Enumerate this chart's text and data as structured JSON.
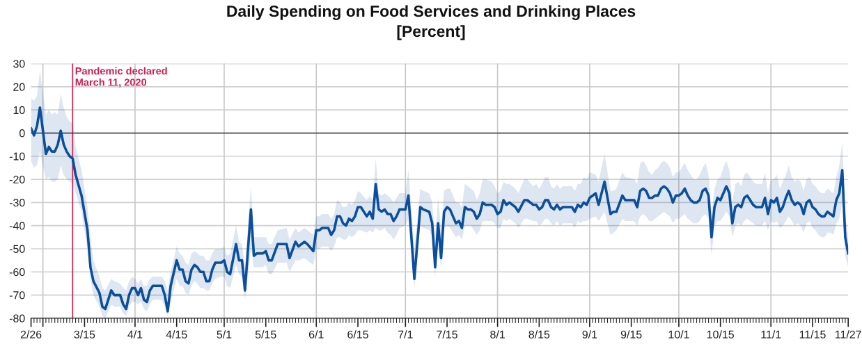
{
  "chart_data": {
    "type": "line",
    "title": "Daily Spending on Food Services and Drinking Places\n[Percent]",
    "x": [
      "2020-02-26",
      "2020-02-27",
      "2020-02-28",
      "2020-02-29",
      "2020-03-02",
      "2020-03-03",
      "2020-03-04",
      "2020-03-05",
      "2020-03-06",
      "2020-03-07",
      "2020-03-08",
      "2020-03-09",
      "2020-03-10",
      "2020-03-11",
      "2020-03-12",
      "2020-03-14",
      "2020-03-16",
      "2020-03-17",
      "2020-03-18",
      "2020-03-20",
      "2020-03-21",
      "2020-03-22",
      "2020-03-24",
      "2020-03-25",
      "2020-03-27",
      "2020-03-28",
      "2020-03-29",
      "2020-03-30",
      "2020-03-31",
      "2020-04-01",
      "2020-04-02",
      "2020-04-03",
      "2020-04-04",
      "2020-04-05",
      "2020-04-06",
      "2020-04-07",
      "2020-04-10",
      "2020-04-11",
      "2020-04-12",
      "2020-04-13",
      "2020-04-15",
      "2020-04-16",
      "2020-04-17",
      "2020-04-18",
      "2020-04-19",
      "2020-04-20",
      "2020-04-21",
      "2020-04-22",
      "2020-04-23",
      "2020-04-24",
      "2020-04-25",
      "2020-04-26",
      "2020-04-27",
      "2020-04-28",
      "2020-04-30",
      "2020-05-01",
      "2020-05-02",
      "2020-05-03",
      "2020-05-05",
      "2020-05-06",
      "2020-05-07",
      "2020-05-08",
      "2020-05-10",
      "2020-05-11",
      "2020-05-12",
      "2020-05-14",
      "2020-05-15",
      "2020-05-16",
      "2020-05-17",
      "2020-05-19",
      "2020-05-22",
      "2020-05-23",
      "2020-05-25",
      "2020-05-26",
      "2020-05-28",
      "2020-05-29",
      "2020-05-31",
      "2020-06-01",
      "2020-06-02",
      "2020-06-03",
      "2020-06-05",
      "2020-06-06",
      "2020-06-07",
      "2020-06-08",
      "2020-06-09",
      "2020-06-10",
      "2020-06-11",
      "2020-06-12",
      "2020-06-13",
      "2020-06-14",
      "2020-06-15",
      "2020-06-16",
      "2020-06-18",
      "2020-06-19",
      "2020-06-20",
      "2020-06-21",
      "2020-06-22",
      "2020-06-23",
      "2020-06-24",
      "2020-06-25",
      "2020-06-26",
      "2020-06-27",
      "2020-06-28",
      "2020-06-29",
      "2020-07-01",
      "2020-07-02",
      "2020-07-04",
      "2020-07-06",
      "2020-07-07",
      "2020-07-09",
      "2020-07-10",
      "2020-07-11",
      "2020-07-12",
      "2020-07-13",
      "2020-07-14",
      "2020-07-15",
      "2020-07-16",
      "2020-07-18",
      "2020-07-19",
      "2020-07-20",
      "2020-07-21",
      "2020-07-22",
      "2020-07-23",
      "2020-07-24",
      "2020-07-25",
      "2020-07-26",
      "2020-07-27",
      "2020-07-28",
      "2020-07-30",
      "2020-07-31",
      "2020-08-01",
      "2020-08-02",
      "2020-08-03",
      "2020-08-04",
      "2020-08-05",
      "2020-08-07",
      "2020-08-08",
      "2020-08-10",
      "2020-08-11",
      "2020-08-13",
      "2020-08-14",
      "2020-08-15",
      "2020-08-16",
      "2020-08-17",
      "2020-08-18",
      "2020-08-19",
      "2020-08-20",
      "2020-08-21",
      "2020-08-22",
      "2020-08-23",
      "2020-08-26",
      "2020-08-27",
      "2020-08-28",
      "2020-08-29",
      "2020-08-30",
      "2020-08-31",
      "2020-09-01",
      "2020-09-03",
      "2020-09-04",
      "2020-09-06",
      "2020-09-08",
      "2020-09-09",
      "2020-09-10",
      "2020-09-12",
      "2020-09-13",
      "2020-09-16",
      "2020-09-17",
      "2020-09-18",
      "2020-09-19",
      "2020-09-20",
      "2020-09-21",
      "2020-09-22",
      "2020-09-23",
      "2020-09-24",
      "2020-09-25",
      "2020-09-26",
      "2020-09-27",
      "2020-09-28",
      "2020-09-29",
      "2020-09-30",
      "2020-10-01",
      "2020-10-02",
      "2020-10-03",
      "2020-10-04",
      "2020-10-05",
      "2020-10-06",
      "2020-10-07",
      "2020-10-08",
      "2020-10-09",
      "2020-10-10",
      "2020-10-11",
      "2020-10-12",
      "2020-10-13",
      "2020-10-14",
      "2020-10-15",
      "2020-10-16",
      "2020-10-17",
      "2020-10-18",
      "2020-10-19",
      "2020-10-20",
      "2020-10-21",
      "2020-10-22",
      "2020-10-23",
      "2020-10-24",
      "2020-10-25",
      "2020-10-26",
      "2020-10-27",
      "2020-10-29",
      "2020-10-30",
      "2020-10-31",
      "2020-11-01",
      "2020-11-02",
      "2020-11-03",
      "2020-11-04",
      "2020-11-05",
      "2020-11-06",
      "2020-11-07",
      "2020-11-08",
      "2020-11-09",
      "2020-11-10",
      "2020-11-11",
      "2020-11-12",
      "2020-11-13",
      "2020-11-14",
      "2020-11-15",
      "2020-11-16",
      "2020-11-17",
      "2020-11-18",
      "2020-11-19",
      "2020-11-20",
      "2020-11-21",
      "2020-11-22",
      "2020-11-23",
      "2020-11-24",
      "2020-11-25",
      "2020-11-26",
      "2020-11-27"
    ],
    "series": [
      {
        "color": "#0b4f9c",
        "values": [
          2,
          -1,
          3,
          11,
          -9,
          -6,
          -8,
          -8,
          -5,
          1,
          -5,
          -8,
          -10,
          -11,
          -18,
          -27,
          -42,
          -58,
          -64,
          -69,
          -75,
          -76,
          -68,
          -70,
          -70,
          -74,
          -76,
          -70,
          -67,
          -67,
          -70,
          -67,
          -72,
          -73,
          -68,
          -66,
          -66,
          -70,
          -77,
          -66,
          -55,
          -59,
          -59,
          -64,
          -65,
          -59,
          -57,
          -58,
          -60,
          -60,
          -64,
          -64,
          -59,
          -56,
          -56,
          -55,
          -60,
          -61,
          -48,
          -55,
          -55,
          -68,
          -33,
          -53,
          -52,
          -52,
          -51,
          -55,
          -55,
          -48,
          -48,
          -54,
          -47,
          -49,
          -47,
          -48,
          -51,
          -42,
          -42,
          -41,
          -41,
          -44,
          -42,
          -36,
          -36,
          -39,
          -40,
          -37,
          -38,
          -36,
          -32,
          -32,
          -36,
          -34,
          -37,
          -22,
          -33,
          -34,
          -33,
          -35,
          -35,
          -38,
          -36,
          -33,
          -33,
          -27,
          -63,
          -32,
          -33,
          -34,
          -39,
          -58,
          -39,
          -54,
          -34,
          -32,
          -33,
          -39,
          -38,
          -41,
          -32,
          -33,
          -33,
          -34,
          -37,
          -35,
          -30,
          -31,
          -31,
          -32,
          -35,
          -34,
          -29,
          -31,
          -30,
          -32,
          -34,
          -29,
          -29,
          -31,
          -31,
          -33,
          -32,
          -29,
          -29,
          -32,
          -33,
          -31,
          -33,
          -32,
          -32,
          -34,
          -31,
          -32,
          -30,
          -31,
          -28,
          -26,
          -31,
          -21,
          -35,
          -34,
          -34,
          -27,
          -29,
          -29,
          -32,
          -25,
          -24,
          -25,
          -28,
          -28,
          -27,
          -27,
          -24,
          -23,
          -24,
          -26,
          -30,
          -27,
          -27,
          -26,
          -24,
          -27,
          -29,
          -30,
          -30,
          -29,
          -25,
          -24,
          -27,
          -45,
          -32,
          -28,
          -29,
          -26,
          -23,
          -26,
          -39,
          -32,
          -31,
          -32,
          -28,
          -27,
          -29,
          -31,
          -32,
          -32,
          -28,
          -35,
          -29,
          -30,
          -28,
          -34,
          -32,
          -28,
          -25,
          -29,
          -31,
          -30,
          -31,
          -35,
          -30,
          -29,
          -32,
          -33,
          -35,
          -36,
          -36,
          -34,
          -35,
          -36,
          -29,
          -26,
          -16,
          -45,
          -52
        ],
        "lower": [
          -12,
          -15,
          -14,
          -8,
          -20,
          -19,
          -21,
          -21,
          -20,
          -14,
          -18,
          -20,
          -21,
          -22,
          -26,
          -34,
          -50,
          -63,
          -70,
          -75,
          -79,
          -80,
          -74,
          -75,
          -75,
          -78,
          -79,
          -75,
          -73,
          -73,
          -74,
          -73,
          -76,
          -77,
          -74,
          -72,
          -72,
          -75,
          -79,
          -73,
          -63,
          -66,
          -66,
          -69,
          -70,
          -66,
          -64,
          -65,
          -67,
          -67,
          -68,
          -68,
          -65,
          -63,
          -62,
          -62,
          -66,
          -67,
          -57,
          -61,
          -62,
          -72,
          -50,
          -58,
          -58,
          -58,
          -57,
          -61,
          -61,
          -56,
          -56,
          -60,
          -55,
          -55,
          -54,
          -55,
          -57,
          -50,
          -50,
          -49,
          -49,
          -51,
          -49,
          -45,
          -45,
          -46,
          -46,
          -44,
          -45,
          -44,
          -42,
          -42,
          -43,
          -42,
          -43,
          -41,
          -42,
          -42,
          -41,
          -43,
          -44,
          -46,
          -44,
          -41,
          -40,
          -37,
          -67,
          -40,
          -41,
          -42,
          -45,
          -62,
          -46,
          -59,
          -41,
          -40,
          -41,
          -45,
          -44,
          -46,
          -40,
          -40,
          -40,
          -42,
          -44,
          -42,
          -38,
          -38,
          -38,
          -39,
          -41,
          -41,
          -37,
          -38,
          -37,
          -39,
          -41,
          -37,
          -37,
          -38,
          -38,
          -40,
          -39,
          -37,
          -37,
          -39,
          -40,
          -38,
          -40,
          -39,
          -39,
          -41,
          -38,
          -39,
          -38,
          -38,
          -37,
          -36,
          -38,
          -34,
          -44,
          -43,
          -42,
          -37,
          -38,
          -38,
          -40,
          -36,
          -35,
          -36,
          -38,
          -38,
          -37,
          -36,
          -35,
          -34,
          -35,
          -36,
          -39,
          -37,
          -37,
          -36,
          -35,
          -37,
          -38,
          -39,
          -39,
          -38,
          -36,
          -35,
          -37,
          -53,
          -40,
          -38,
          -38,
          -36,
          -34,
          -36,
          -45,
          -40,
          -39,
          -40,
          -38,
          -37,
          -38,
          -39,
          -40,
          -40,
          -38,
          -42,
          -38,
          -39,
          -38,
          -41,
          -40,
          -38,
          -36,
          -38,
          -40,
          -39,
          -40,
          -43,
          -39,
          -38,
          -41,
          -42,
          -44,
          -45,
          -45,
          -43,
          -43,
          -44,
          -39,
          -37,
          -30,
          -53,
          -58
        ],
        "upper": [
          15,
          14,
          16,
          27,
          8,
          10,
          8,
          9,
          8,
          17,
          11,
          7,
          5,
          4,
          -6,
          -16,
          -32,
          -45,
          -55,
          -62,
          -67,
          -68,
          -63,
          -64,
          -65,
          -67,
          -68,
          -64,
          -62,
          -63,
          -65,
          -63,
          -66,
          -66,
          -63,
          -62,
          -62,
          -64,
          -68,
          -60,
          -49,
          -52,
          -53,
          -56,
          -57,
          -52,
          -51,
          -52,
          -53,
          -53,
          -55,
          -55,
          -52,
          -50,
          -50,
          -49,
          -53,
          -52,
          -40,
          -47,
          -48,
          -58,
          -23,
          -45,
          -45,
          -45,
          -45,
          -48,
          -48,
          -42,
          -41,
          -46,
          -41,
          -43,
          -41,
          -42,
          -44,
          -36,
          -36,
          -35,
          -35,
          -37,
          -35,
          -29,
          -30,
          -32,
          -32,
          -30,
          -31,
          -29,
          -25,
          -26,
          -29,
          -27,
          -29,
          -11,
          -26,
          -27,
          -26,
          -27,
          -28,
          -30,
          -28,
          -26,
          -26,
          -16,
          -50,
          -24,
          -25,
          -26,
          -30,
          -45,
          -28,
          -42,
          -25,
          -24,
          -24,
          -30,
          -30,
          -32,
          -22,
          -23,
          -24,
          -25,
          -29,
          -26,
          -20,
          -20,
          -21,
          -23,
          -26,
          -25,
          -21,
          -22,
          -22,
          -24,
          -26,
          -20,
          -20,
          -23,
          -22,
          -24,
          -22,
          -19,
          -19,
          -23,
          -24,
          -22,
          -24,
          -23,
          -23,
          -25,
          -22,
          -22,
          -19,
          -20,
          -17,
          -18,
          -21,
          -9,
          -25,
          -25,
          -24,
          -17,
          -19,
          -20,
          -22,
          -13,
          -12,
          -14,
          -17,
          -18,
          -16,
          -15,
          -13,
          -12,
          -13,
          -15,
          -19,
          -17,
          -17,
          -15,
          -13,
          -16,
          -18,
          -20,
          -20,
          -18,
          -15,
          -13,
          -18,
          -35,
          -24,
          -20,
          -19,
          -15,
          -12,
          -16,
          -30,
          -22,
          -21,
          -23,
          -18,
          -17,
          -19,
          -21,
          -22,
          -22,
          -17,
          -26,
          -20,
          -20,
          -18,
          -24,
          -21,
          -18,
          -14,
          -19,
          -21,
          -20,
          -21,
          -25,
          -20,
          -19,
          -22,
          -23,
          -25,
          -26,
          -26,
          -24,
          -25,
          -26,
          -19,
          -14,
          -4,
          -35,
          -45
        ]
      }
    ],
    "xlim": [
      "2020-02-26",
      "2020-11-27"
    ],
    "xticks": [
      {
        "value": "2020-02-26",
        "label": "2/26"
      },
      {
        "value": "2020-03-01",
        "label": null
      },
      {
        "value": "2020-03-15",
        "label": "3/15"
      },
      {
        "value": "2020-04-01",
        "label": "4/1"
      },
      {
        "value": "2020-04-15",
        "label": "4/15"
      },
      {
        "value": "2020-05-01",
        "label": "5/1"
      },
      {
        "value": "2020-05-15",
        "label": "5/15"
      },
      {
        "value": "2020-06-01",
        "label": "6/1"
      },
      {
        "value": "2020-06-15",
        "label": "6/15"
      },
      {
        "value": "2020-07-01",
        "label": "7/1"
      },
      {
        "value": "2020-07-15",
        "label": "7/15"
      },
      {
        "value": "2020-08-01",
        "label": "8/1"
      },
      {
        "value": "2020-08-15",
        "label": "8/15"
      },
      {
        "value": "2020-09-01",
        "label": "9/1"
      },
      {
        "value": "2020-09-15",
        "label": "9/15"
      },
      {
        "value": "2020-10-01",
        "label": "10/1"
      },
      {
        "value": "2020-10-15",
        "label": "10/15"
      },
      {
        "value": "2020-11-01",
        "label": "11/1"
      },
      {
        "value": "2020-11-15",
        "label": "11/15"
      },
      {
        "value": "2020-11-27",
        "label": "11/27"
      }
    ],
    "ylim": [
      -80,
      30
    ],
    "yticks": [
      -80,
      -70,
      -60,
      -50,
      -40,
      -30,
      -20,
      -10,
      0,
      10,
      20,
      30
    ],
    "grid": true,
    "legend": false,
    "ref_lines": [
      {
        "axis": "x",
        "value": "2020-03-11",
        "label": "Pandemic declared\nMarch 11, 2020",
        "color": "#d11f4f"
      },
      {
        "axis": "y",
        "value": 0,
        "color": "#333333"
      }
    ]
  }
}
